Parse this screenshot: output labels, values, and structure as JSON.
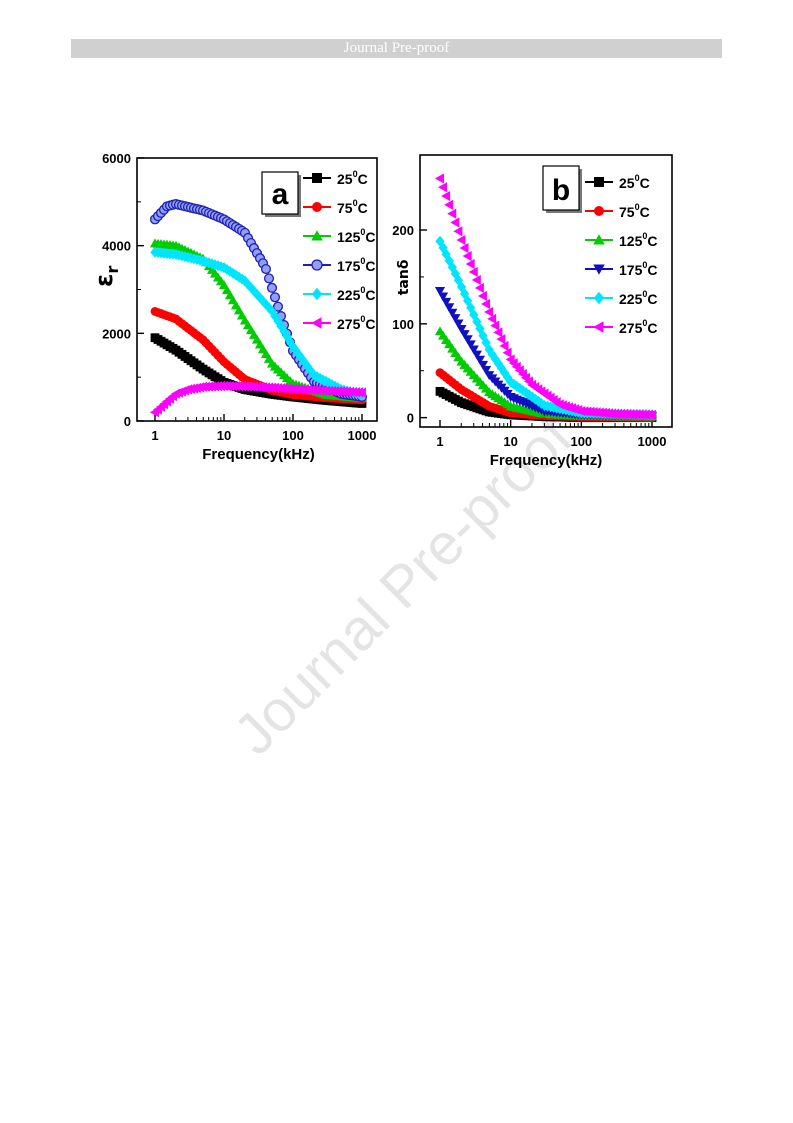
{
  "header": {
    "banner_text": "Journal Pre-proof"
  },
  "watermark": {
    "text": "Journal Pre-proof"
  },
  "chart_data": [
    {
      "type": "scatter",
      "panel_label": "a",
      "xlabel": "Frequency(kHz)",
      "ylabel": "ε",
      "ylabel_sub": "r",
      "x_scale": "log",
      "xlim": [
        1,
        1000
      ],
      "ylim": [
        0,
        6000
      ],
      "x_ticks": [
        1,
        10,
        100,
        1000
      ],
      "y_ticks": [
        0,
        2000,
        4000,
        6000
      ],
      "legend_position": "top-right",
      "series": [
        {
          "name": "25",
          "unit": "C",
          "marker": "square",
          "color": "#000000",
          "points": [
            [
              1,
              1900
            ],
            [
              2,
              1620
            ],
            [
              5,
              1180
            ],
            [
              10,
              880
            ],
            [
              20,
              720
            ],
            [
              50,
              610
            ],
            [
              100,
              550
            ],
            [
              300,
              470
            ],
            [
              1000,
              400
            ]
          ]
        },
        {
          "name": "75",
          "unit": "C",
          "marker": "circle",
          "color": "#ff0000",
          "points": [
            [
              1,
              2500
            ],
            [
              2,
              2330
            ],
            [
              5,
              1850
            ],
            [
              10,
              1350
            ],
            [
              20,
              950
            ],
            [
              50,
              700
            ],
            [
              100,
              600
            ],
            [
              300,
              530
            ],
            [
              1000,
              480
            ]
          ]
        },
        {
          "name": "125",
          "unit": "C",
          "marker": "triangle-up",
          "color": "#00cc00",
          "points": [
            [
              1,
              4050
            ],
            [
              2,
              4000
            ],
            [
              5,
              3700
            ],
            [
              10,
              3100
            ],
            [
              20,
              2300
            ],
            [
              50,
              1300
            ],
            [
              100,
              850
            ],
            [
              300,
              600
            ],
            [
              1000,
              520
            ]
          ]
        },
        {
          "name": "175",
          "unit": "C",
          "marker": "circle-open",
          "color": "#2020b0",
          "points": [
            [
              1,
              4600
            ],
            [
              1.5,
              4900
            ],
            [
              2,
              4950
            ],
            [
              5,
              4800
            ],
            [
              10,
              4600
            ],
            [
              20,
              4300
            ],
            [
              40,
              3500
            ],
            [
              70,
              2300
            ],
            [
              100,
              1600
            ],
            [
              200,
              900
            ],
            [
              500,
              620
            ],
            [
              1000,
              550
            ]
          ]
        },
        {
          "name": "225",
          "unit": "C",
          "marker": "diamond",
          "color": "#00e5ff",
          "points": [
            [
              1,
              3850
            ],
            [
              2,
              3800
            ],
            [
              5,
              3650
            ],
            [
              10,
              3500
            ],
            [
              20,
              3200
            ],
            [
              50,
              2500
            ],
            [
              100,
              1700
            ],
            [
              200,
              1050
            ],
            [
              500,
              720
            ],
            [
              1000,
              600
            ]
          ]
        },
        {
          "name": "275",
          "unit": "C",
          "marker": "triangle-left",
          "color": "#ff00ff",
          "points": [
            [
              1,
              200
            ],
            [
              1.5,
              450
            ],
            [
              2,
              620
            ],
            [
              3,
              720
            ],
            [
              5,
              780
            ],
            [
              10,
              800
            ],
            [
              20,
              790
            ],
            [
              50,
              760
            ],
            [
              100,
              730
            ],
            [
              300,
              690
            ],
            [
              1000,
              650
            ]
          ]
        }
      ]
    },
    {
      "type": "scatter",
      "panel_label": "b",
      "xlabel": "Frequency(kHz)",
      "ylabel": "tanδ",
      "x_scale": "log",
      "xlim": [
        1,
        1000
      ],
      "ylim": [
        -10,
        280
      ],
      "x_ticks": [
        1,
        10,
        100,
        1000
      ],
      "y_ticks": [
        0,
        100,
        200
      ],
      "legend_position": "top-right",
      "series": [
        {
          "name": "25",
          "unit": "C",
          "marker": "square",
          "color": "#000000",
          "points": [
            [
              1,
              28
            ],
            [
              2,
              16
            ],
            [
              5,
              6
            ],
            [
              10,
              3
            ],
            [
              30,
              1
            ],
            [
              100,
              0
            ],
            [
              1000,
              0
            ]
          ]
        },
        {
          "name": "75",
          "unit": "C",
          "marker": "circle",
          "color": "#ff0000",
          "points": [
            [
              1,
              48
            ],
            [
              2,
              30
            ],
            [
              5,
              12
            ],
            [
              10,
              5
            ],
            [
              30,
              2
            ],
            [
              100,
              1
            ],
            [
              1000,
              0
            ]
          ]
        },
        {
          "name": "125",
          "unit": "C",
          "marker": "triangle-up",
          "color": "#00cc00",
          "points": [
            [
              1,
              92
            ],
            [
              2,
              60
            ],
            [
              5,
              27
            ],
            [
              10,
              12
            ],
            [
              30,
              4
            ],
            [
              100,
              2
            ],
            [
              1000,
              1
            ]
          ]
        },
        {
          "name": "175",
          "unit": "C",
          "marker": "triangle-down",
          "color": "#1010c0",
          "points": [
            [
              1,
              135
            ],
            [
              2,
              95
            ],
            [
              5,
              45
            ],
            [
              10,
              22
            ],
            [
              30,
              7
            ],
            [
              100,
              3
            ],
            [
              1000,
              2
            ]
          ]
        },
        {
          "name": "225",
          "unit": "C",
          "marker": "diamond",
          "color": "#00e5ff",
          "points": [
            [
              1,
              188
            ],
            [
              2,
              140
            ],
            [
              5,
              72
            ],
            [
              10,
              38
            ],
            [
              30,
              13
            ],
            [
              100,
              5
            ],
            [
              1000,
              3
            ]
          ]
        },
        {
          "name": "275",
          "unit": "C",
          "marker": "triangle-left",
          "color": "#ff00ff",
          "points": [
            [
              1,
              255
            ],
            [
              2,
              190
            ],
            [
              5,
              112
            ],
            [
              10,
              62
            ],
            [
              20,
              35
            ],
            [
              50,
              14
            ],
            [
              100,
              7
            ],
            [
              300,
              4
            ],
            [
              1000,
              3
            ]
          ]
        }
      ]
    }
  ]
}
